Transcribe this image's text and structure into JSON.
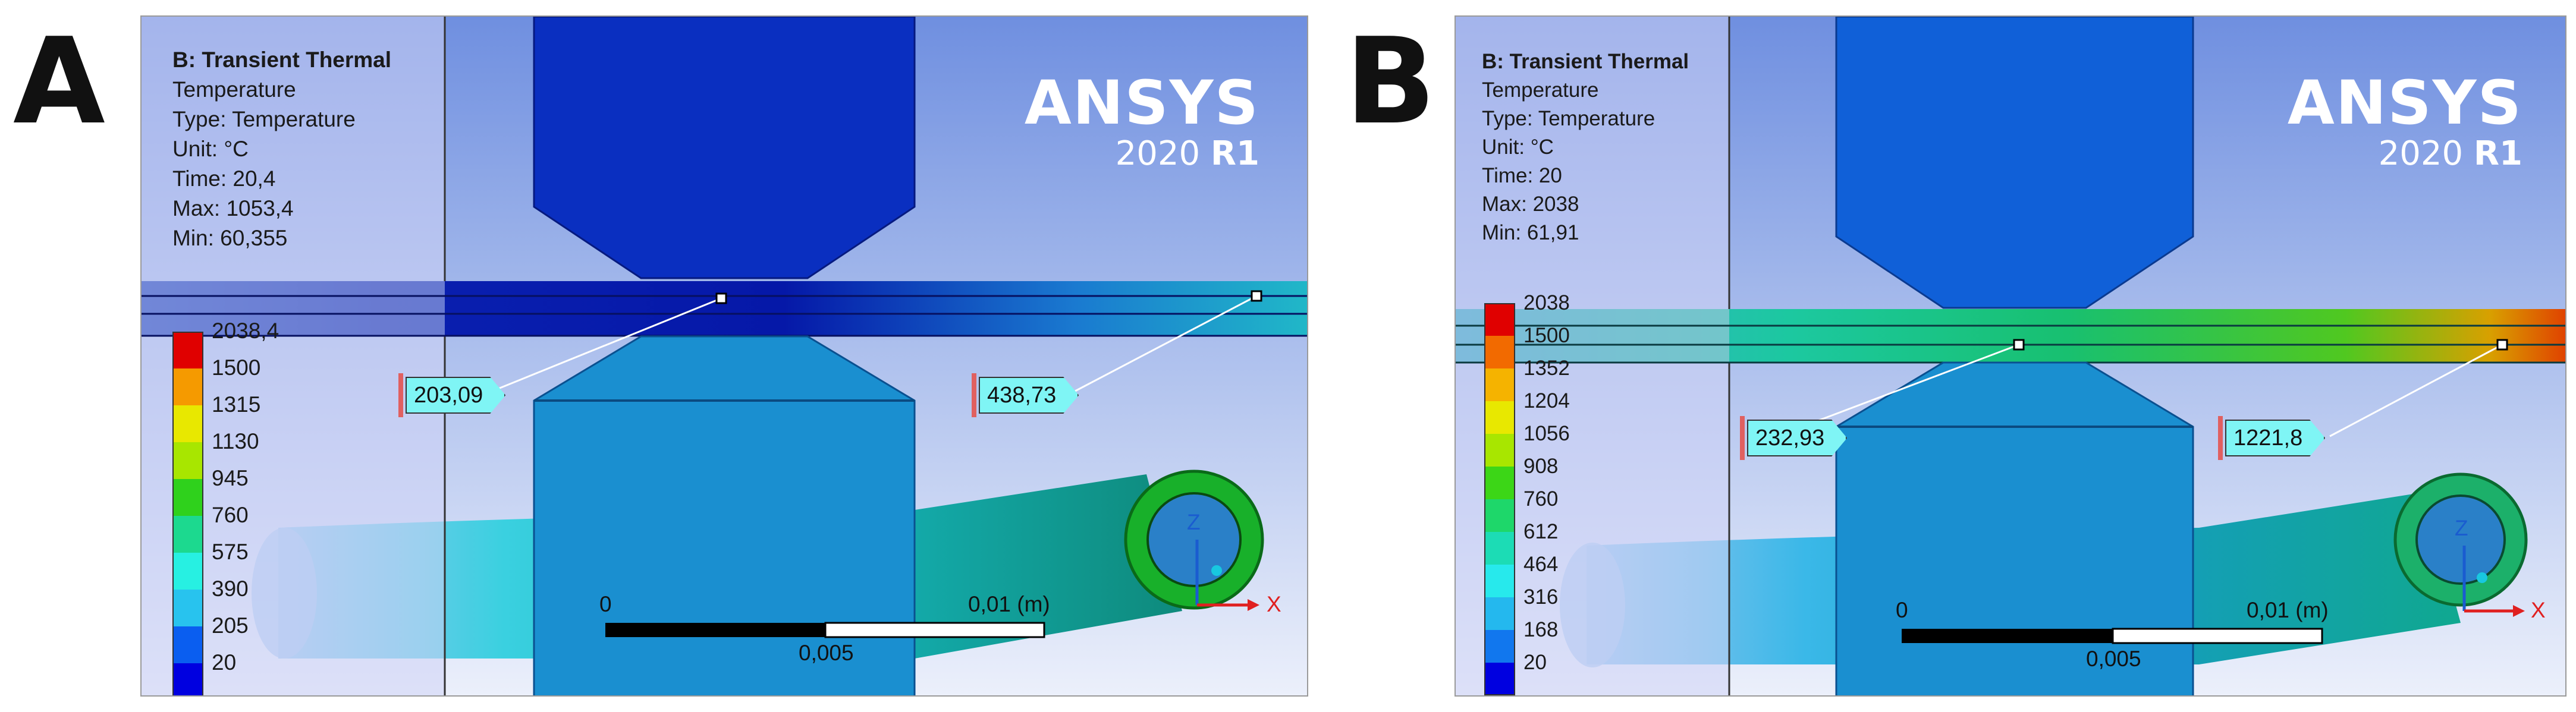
{
  "panels": [
    {
      "letter": "A",
      "info": {
        "title": "B: Transient Thermal",
        "lines": [
          "Temperature",
          "Type: Temperature",
          "Unit: °C",
          "Time: 20,4",
          "Max: 1053,4",
          "Min: 60,355"
        ]
      },
      "brand": {
        "name": "ANSYS",
        "version": "2020",
        "release": "R1"
      },
      "legend": [
        "2038,4",
        "1500",
        "1315",
        "1130",
        "945",
        "760",
        "575",
        "390",
        "205",
        "20"
      ],
      "probes": [
        {
          "value": "203,09"
        },
        {
          "value": "438,73"
        }
      ],
      "scale": {
        "start": "0",
        "end": "0,01 (m)",
        "mid": "0,005"
      },
      "triad": {
        "z": "Z",
        "x": "X"
      }
    },
    {
      "letter": "B",
      "info": {
        "title": "B: Transient Thermal",
        "lines": [
          "Temperature",
          "Type: Temperature",
          "Unit: °C",
          "Time: 20",
          "Max: 2038",
          "Min: 61,91"
        ]
      },
      "brand": {
        "name": "ANSYS",
        "version": "2020",
        "release": "R1"
      },
      "legend": [
        "2038",
        "1500",
        "1352",
        "1204",
        "1056",
        "908",
        "760",
        "612",
        "464",
        "316",
        "168",
        "20"
      ],
      "probes": [
        {
          "value": "232,93"
        },
        {
          "value": "1221,8"
        }
      ],
      "scale": {
        "start": "0",
        "end": "0,01 (m)",
        "mid": "0,005"
      },
      "triad": {
        "z": "Z",
        "x": "X"
      }
    }
  ],
  "colors": {
    "legend_a": [
      "#e00000",
      "#f59a00",
      "#e8e800",
      "#a8e600",
      "#2fd11c",
      "#1cd98f",
      "#27f0e2",
      "#28c3ee",
      "#0a5ef0",
      "#0000e0"
    ],
    "legend_b": [
      "#e00000",
      "#f26a00",
      "#f5b300",
      "#e8e800",
      "#a8e600",
      "#3cd617",
      "#1ed76a",
      "#1cdcb5",
      "#27e9ec",
      "#24b8ee",
      "#1177ee",
      "#0000e0"
    ],
    "electrode": "#1a8fd0",
    "upper_electrode_a": "#0a2fc0",
    "upper_electrode_b": "#1060d8"
  }
}
